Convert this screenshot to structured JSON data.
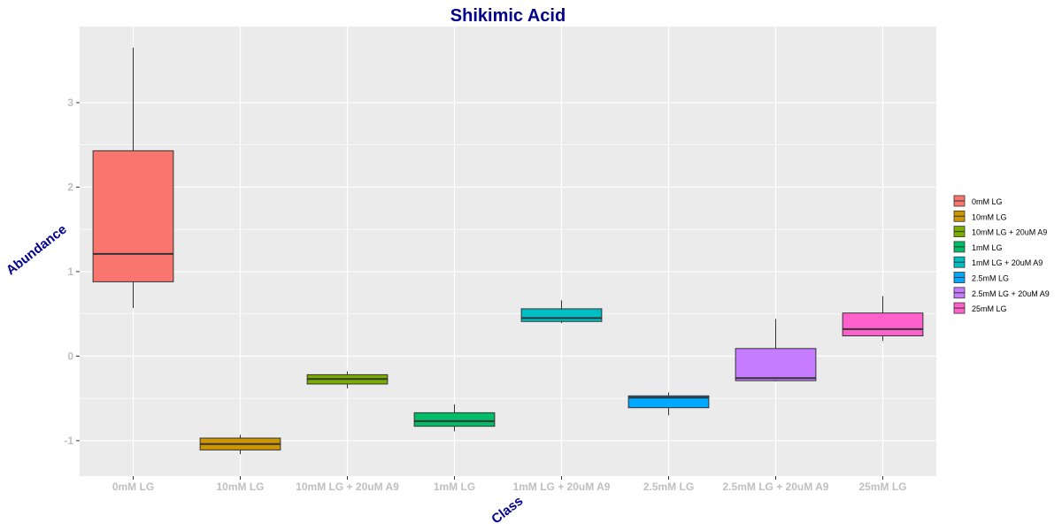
{
  "chart_data": {
    "type": "box",
    "title": "Shikimic Acid",
    "xlabel": "Class",
    "ylabel": "Abundance",
    "ylim": [
      -1.42,
      3.9
    ],
    "yticks": [
      -1,
      0,
      1,
      2,
      3
    ],
    "ytick_labels": [
      "-1",
      "0",
      "1",
      "2",
      "3"
    ],
    "grid": true,
    "legend_position": "right",
    "categories": [
      "0mM LG",
      "10mM LG",
      "10mM LG + 20uM A9",
      "1mM LG",
      "1mM LG + 20uM A9",
      "2.5mM LG",
      "2.5mM LG + 20uM A9",
      "25mM LG"
    ],
    "series": [
      {
        "name": "0mM LG",
        "color": "#F8766D",
        "whisker_low": 0.57,
        "q1": 0.88,
        "median": 1.21,
        "q3": 2.43,
        "whisker_high": 3.65
      },
      {
        "name": "10mM LG",
        "color": "#CD9600",
        "whisker_low": -1.16,
        "q1": -1.11,
        "median": -1.04,
        "q3": -0.97,
        "whisker_high": -0.93
      },
      {
        "name": "10mM LG + 20uM A9",
        "color": "#7CAE00",
        "whisker_low": -0.38,
        "q1": -0.33,
        "median": -0.27,
        "q3": -0.22,
        "whisker_high": -0.18
      },
      {
        "name": "1mM LG",
        "color": "#00BE67",
        "whisker_low": -0.89,
        "q1": -0.83,
        "median": -0.77,
        "q3": -0.67,
        "whisker_high": -0.57
      },
      {
        "name": "1mM LG + 20uM A9",
        "color": "#00BFC4",
        "whisker_low": 0.39,
        "q1": 0.41,
        "median": 0.45,
        "q3": 0.56,
        "whisker_high": 0.66
      },
      {
        "name": "2.5mM LG",
        "color": "#00A9FF",
        "whisker_low": -0.7,
        "q1": -0.61,
        "median": -0.49,
        "q3": -0.47,
        "whisker_high": -0.43
      },
      {
        "name": "2.5mM LG + 20uM A9",
        "color": "#C77CFF",
        "whisker_low": -0.3,
        "q1": -0.29,
        "median": -0.26,
        "q3": 0.09,
        "whisker_high": 0.44
      },
      {
        "name": "25mM LG",
        "color": "#FF61CC",
        "whisker_low": 0.18,
        "q1": 0.24,
        "median": 0.32,
        "q3": 0.51,
        "whisker_high": 0.71
      }
    ]
  }
}
